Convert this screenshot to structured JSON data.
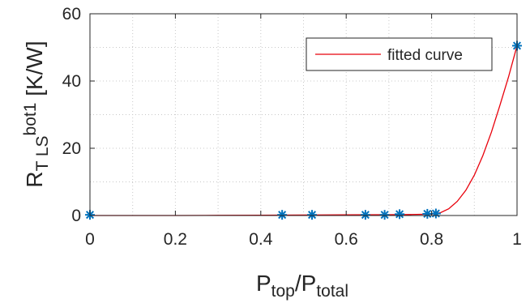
{
  "chart_data": {
    "type": "scatter",
    "xlabel": {
      "main": "P",
      "sub1": "top",
      "slash": "/P",
      "sub2": "total"
    },
    "ylabel": {
      "main": "R",
      "sub": "T LS",
      "sup": "bot1",
      "unit": " [K/W]"
    },
    "xlim": [
      0,
      1
    ],
    "ylim": [
      0,
      60
    ],
    "xticks": [
      0,
      0.2,
      0.4,
      0.6,
      0.8,
      1
    ],
    "xtick_labels": [
      "0",
      "0.2",
      "0.4",
      "0.6",
      "0.8",
      "1"
    ],
    "yticks": [
      0,
      20,
      40,
      60
    ],
    "ytick_labels": [
      "0",
      "20",
      "40",
      "60"
    ],
    "grid": true,
    "legend_position": "top-right",
    "series": [
      {
        "name": "",
        "kind": "markers",
        "marker": "asterisk",
        "color": "#0072BD",
        "x": [
          0.0,
          0.45,
          0.52,
          0.645,
          0.69,
          0.725,
          0.79,
          0.81,
          1.0
        ],
        "y": [
          0.2,
          0.2,
          0.2,
          0.2,
          0.2,
          0.4,
          0.5,
          0.6,
          50.5
        ]
      },
      {
        "name": "fitted curve",
        "kind": "line",
        "color": "#e8000b",
        "x": [
          0.0,
          0.1,
          0.2,
          0.3,
          0.4,
          0.5,
          0.6,
          0.7,
          0.75,
          0.8,
          0.82,
          0.84,
          0.86,
          0.88,
          0.9,
          0.92,
          0.94,
          0.96,
          0.98,
          1.0
        ],
        "y": [
          0.0,
          0.0,
          0.0,
          0.05,
          0.1,
          0.15,
          0.2,
          0.25,
          0.3,
          0.4,
          0.8,
          2.0,
          4.2,
          7.5,
          12.0,
          17.8,
          24.8,
          32.8,
          41.2,
          50.5
        ]
      }
    ]
  }
}
